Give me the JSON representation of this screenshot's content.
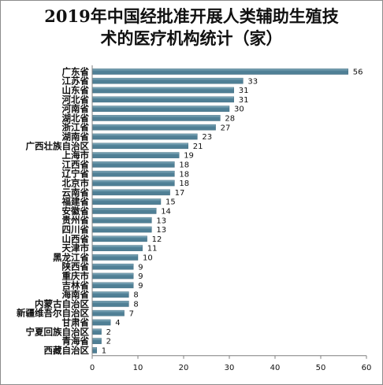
{
  "chart_data": {
    "type": "bar",
    "orientation": "horizontal",
    "title": "2019年中国经批准开展人类辅助生殖技术的医疗机构统计（家）",
    "title_lines": [
      "2019年中国经批准开展人类辅助生殖技",
      "术的医疗机构统计（家）"
    ],
    "categories": [
      "广东省",
      "江苏省",
      "山东省",
      "河北省",
      "河南省",
      "湖北省",
      "浙江省",
      "湖南省",
      "广西壮族自治区",
      "上海市",
      "江西省",
      "辽宁省",
      "北京市",
      "云南省",
      "福建省",
      "安徽省",
      "贵州省",
      "四川省",
      "山西省",
      "天津市",
      "黑龙江省",
      "陕西省",
      "重庆市",
      "吉林省",
      "海南省",
      "内蒙古自治区",
      "新疆维吾尔自治区",
      "甘肃省",
      "宁夏回族自治区",
      "青海省",
      "西藏自治区"
    ],
    "values": [
      56,
      33,
      31,
      31,
      30,
      28,
      27,
      23,
      21,
      19,
      18,
      18,
      18,
      17,
      15,
      14,
      13,
      13,
      12,
      11,
      10,
      9,
      9,
      9,
      8,
      8,
      7,
      4,
      2,
      2,
      1
    ],
    "xlim": [
      0,
      60
    ],
    "x_ticks": [
      0,
      10,
      20,
      30,
      40,
      50,
      60
    ],
    "xlabel": "",
    "ylabel": "",
    "grid": false,
    "legend": "none",
    "bar_color": "#4f7f95",
    "bar_highlight_color": "#86aebf",
    "axis_color": "#7f7f7f"
  }
}
